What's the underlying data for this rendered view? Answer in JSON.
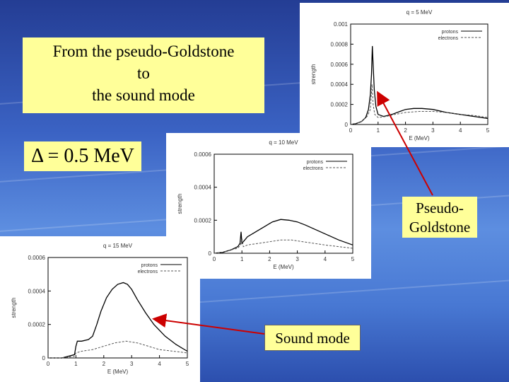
{
  "title_box": {
    "lines": [
      "From the pseudo-Goldstone",
      "to",
      "the sound mode"
    ]
  },
  "delta_label": "Δ = 0.5 MeV",
  "pseudo_label": {
    "lines": [
      "Pseudo-",
      "Goldstone"
    ]
  },
  "sound_label": "Sound mode",
  "colors": {
    "box_fill": "#ffff99",
    "arrow": "#cc0000",
    "protons": "#000000",
    "electrons": "#555555"
  },
  "chart_data": [
    {
      "type": "line",
      "title": "q = 5 MeV",
      "xlabel": "E (MeV)",
      "ylabel": "strength",
      "xlim": [
        0,
        5
      ],
      "ylim": [
        0,
        0.001
      ],
      "xticks": [
        "0",
        "1",
        "2",
        "3",
        "4",
        "5"
      ],
      "yticks": [
        "0",
        "0.0002",
        "0.0004",
        "0.0006",
        "0.0008",
        "0.001"
      ],
      "legend": "top-right",
      "series": [
        {
          "name": "protons",
          "style": "solid",
          "x": [
            0,
            0.2,
            0.4,
            0.55,
            0.65,
            0.72,
            0.76,
            0.79,
            0.82,
            0.86,
            0.92,
            1.0,
            1.2,
            1.5,
            1.8,
            2.0,
            2.3,
            2.6,
            3.0,
            3.5,
            4.0,
            4.5,
            5.0
          ],
          "y": [
            0,
            1e-05,
            3e-05,
            7e-05,
            0.00015,
            0.0003,
            0.0005,
            0.00078,
            0.0006,
            0.00035,
            0.00018,
            0.0001,
            8e-05,
            0.0001,
            0.00013,
            0.00015,
            0.00016,
            0.00016,
            0.00015,
            0.00012,
            0.0001,
            8e-05,
            6e-05
          ]
        },
        {
          "name": "electrons",
          "style": "dashed",
          "x": [
            0,
            0.2,
            0.4,
            0.6,
            0.72,
            0.78,
            0.82,
            0.88,
            1.0,
            1.3,
            1.6,
            2.0,
            2.5,
            3.0,
            3.5,
            4.0,
            4.5,
            5.0
          ],
          "y": [
            0,
            1e-05,
            3e-05,
            8e-05,
            0.00015,
            0.0004,
            0.0002,
            0.0001,
            7e-05,
            8e-05,
            0.0001,
            0.00012,
            0.00013,
            0.00013,
            0.00012,
            0.0001,
            9e-05,
            7e-05
          ]
        }
      ]
    },
    {
      "type": "line",
      "title": "q = 10 MeV",
      "xlabel": "E (MeV)",
      "ylabel": "strength",
      "xlim": [
        0,
        5
      ],
      "ylim": [
        0,
        0.0006
      ],
      "xticks": [
        "0",
        "1",
        "2",
        "3",
        "4",
        "5"
      ],
      "yticks": [
        "0",
        "0.0002",
        "0.0004",
        "0.0006"
      ],
      "legend": "top-right",
      "series": [
        {
          "name": "protons",
          "style": "solid",
          "x": [
            0,
            0.3,
            0.6,
            0.85,
            0.93,
            0.97,
            1.0,
            1.05,
            1.2,
            1.5,
            1.8,
            2.1,
            2.4,
            2.7,
            3.0,
            3.3,
            3.7,
            4.1,
            4.5,
            5.0
          ],
          "y": [
            0,
            5e-06,
            2e-05,
            4e-05,
            6e-05,
            0.00013,
            6e-05,
            7e-05,
            0.0001,
            0.00013,
            0.00016,
            0.00019,
            0.000205,
            0.0002,
            0.00019,
            0.00017,
            0.00014,
            0.00011,
            8e-05,
            5e-05
          ]
        },
        {
          "name": "electrons",
          "style": "dashed",
          "x": [
            0,
            0.3,
            0.6,
            0.85,
            0.95,
            1.0,
            1.05,
            1.2,
            1.6,
            2.0,
            2.4,
            2.8,
            3.2,
            3.6,
            4.0,
            4.5,
            5.0
          ],
          "y": [
            0,
            5e-06,
            2e-05,
            3e-05,
            5e-05,
            9e-05,
            4e-05,
            5e-05,
            6e-05,
            7e-05,
            8e-05,
            8e-05,
            7e-05,
            6e-05,
            5e-05,
            4e-05,
            3e-05
          ]
        }
      ]
    },
    {
      "type": "line",
      "title": "q = 15 MeV",
      "xlabel": "E (MeV)",
      "ylabel": "strength",
      "xlim": [
        0,
        5
      ],
      "ylim": [
        0,
        0.0006
      ],
      "xticks": [
        "0",
        "1",
        "2",
        "3",
        "4",
        "5"
      ],
      "yticks": [
        "0",
        "0.0002",
        "0.0004",
        "0.0006"
      ],
      "legend": "top-right",
      "series": [
        {
          "name": "protons",
          "style": "solid",
          "x": [
            0,
            0.5,
            0.95,
            1.0,
            1.05,
            1.2,
            1.45,
            1.6,
            1.75,
            1.9,
            2.1,
            2.3,
            2.5,
            2.7,
            2.85,
            3.0,
            3.2,
            3.5,
            3.8,
            4.2,
            4.6,
            5.0
          ],
          "y": [
            0,
            0,
            2e-05,
            7e-05,
            0.0001,
            0.0001,
            0.00011,
            0.00013,
            0.0002,
            0.00028,
            0.00036,
            0.00041,
            0.00044,
            0.00045,
            0.00044,
            0.00041,
            0.00035,
            0.00027,
            0.0002,
            0.00013,
            8e-05,
            4e-05
          ]
        },
        {
          "name": "electrons",
          "style": "dashed",
          "x": [
            0,
            0.5,
            0.95,
            1.0,
            1.2,
            1.6,
            2.0,
            2.4,
            2.8,
            3.2,
            3.6,
            4.0,
            4.5,
            5.0
          ],
          "y": [
            0,
            0,
            1e-05,
            3e-05,
            4e-05,
            5e-05,
            7e-05,
            9e-05,
            0.0001,
            9e-05,
            7e-05,
            5e-05,
            4e-05,
            3e-05
          ]
        }
      ]
    }
  ]
}
